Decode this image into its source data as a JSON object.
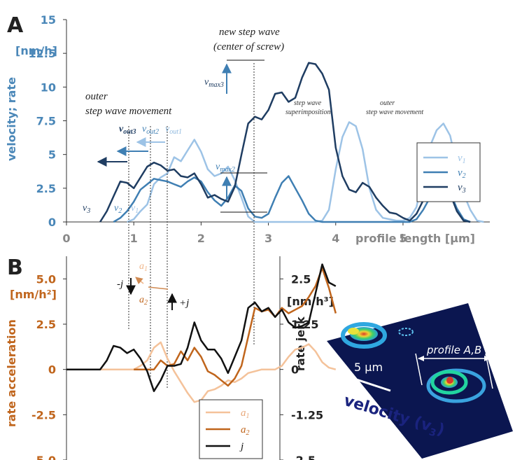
{
  "figure": {
    "panel_a_label": "A",
    "panel_b_label": "B"
  },
  "chart_data": [
    {
      "type": "line",
      "panel": "A",
      "ylabel": "velocity; rate",
      "yunit": "[nm/h]",
      "xlabel": "profile length [µm]",
      "xlim": [
        0,
        6.3
      ],
      "ylim": [
        0,
        15
      ],
      "xticks": [
        0,
        1,
        2,
        3,
        4,
        5
      ],
      "yticks": [
        0,
        2.5,
        5,
        7.5,
        10,
        12.5,
        15
      ],
      "ytick_labels": [
        "0",
        "2.5",
        "5",
        "7.5",
        "10",
        "12.5",
        "15"
      ],
      "xtick_labels": [
        "0",
        "1",
        "2",
        "3",
        "4",
        "5"
      ],
      "legend": {
        "placement": "right",
        "entries": [
          {
            "base": "v",
            "sub": "1"
          },
          {
            "base": "v",
            "sub": "2"
          },
          {
            "base": "v",
            "sub": "3"
          }
        ]
      },
      "colors": [
        "#9dc3e6",
        "#3f7fb3",
        "#1f3d62"
      ],
      "series": [
        {
          "name": "v1",
          "x": [
            0.9,
            1.0,
            1.1,
            1.2,
            1.3,
            1.4,
            1.5,
            1.6,
            1.7,
            1.8,
            1.9,
            2.0,
            2.1,
            2.2,
            2.3,
            2.4,
            2.5,
            2.6,
            2.7,
            2.8,
            2.9,
            3.0,
            3.1,
            3.2,
            3.3,
            3.4,
            3.5,
            3.6,
            3.7,
            3.8,
            3.9,
            4.0,
            4.1,
            4.2,
            4.3,
            4.4,
            4.5,
            4.6,
            4.7,
            4.8,
            4.9,
            5.0,
            5.1,
            5.2,
            5.3,
            5.4,
            5.5,
            5.6,
            5.7,
            5.8,
            5.9,
            6.0,
            6.1,
            6.2
          ],
          "y": [
            0,
            0.2,
            0.8,
            1.3,
            2.8,
            3.3,
            3.6,
            4.8,
            4.5,
            5.3,
            6.1,
            5.2,
            3.9,
            3.4,
            3.6,
            4.1,
            3.1,
            1.8,
            0.4,
            0,
            0,
            0,
            0,
            0,
            0,
            0,
            0,
            0,
            0,
            0.1,
            0.9,
            3.9,
            6.3,
            7.4,
            7.1,
            5.4,
            2.5,
            0.9,
            0.3,
            0.2,
            0.1,
            0.1,
            0.3,
            1.1,
            3.4,
            5.6,
            6.8,
            7.3,
            6.4,
            4.2,
            2.1,
            0.9,
            0.1,
            0
          ]
        },
        {
          "name": "v2",
          "x": [
            0.7,
            0.8,
            0.9,
            1.0,
            1.1,
            1.2,
            1.3,
            1.4,
            1.5,
            1.6,
            1.7,
            1.8,
            1.9,
            2.0,
            2.1,
            2.2,
            2.3,
            2.4,
            2.5,
            2.6,
            2.7,
            2.8,
            2.9,
            3.0,
            3.1,
            3.2,
            3.3,
            3.4,
            3.5,
            3.6,
            3.7,
            3.8,
            3.9,
            4.0,
            4.1,
            4.2,
            4.3,
            4.4,
            4.5,
            4.6,
            4.7,
            4.8,
            4.9,
            5.0,
            5.1,
            5.2,
            5.3,
            5.4,
            5.5,
            5.6,
            5.7,
            5.8,
            5.9,
            6.0
          ],
          "y": [
            0,
            0.3,
            0.8,
            1.5,
            2.4,
            2.8,
            3.2,
            3.1,
            3.0,
            2.8,
            2.6,
            3.0,
            3.3,
            3.0,
            2.2,
            1.6,
            1.2,
            1.8,
            2.7,
            2.3,
            1.0,
            0.4,
            0.3,
            0.6,
            1.8,
            2.9,
            3.4,
            2.5,
            1.6,
            0.6,
            0.1,
            0,
            0,
            0,
            0,
            0,
            0,
            0,
            0,
            0,
            0,
            0,
            0,
            0,
            0,
            0.2,
            0.9,
            1.8,
            2.3,
            2.6,
            2.2,
            1.0,
            0.2,
            0
          ]
        },
        {
          "name": "v3",
          "x": [
            0.5,
            0.6,
            0.7,
            0.8,
            0.9,
            1.0,
            1.1,
            1.2,
            1.3,
            1.4,
            1.5,
            1.6,
            1.7,
            1.8,
            1.9,
            2.0,
            2.1,
            2.2,
            2.3,
            2.4,
            2.5,
            2.6,
            2.7,
            2.8,
            2.9,
            3.0,
            3.1,
            3.2,
            3.3,
            3.4,
            3.5,
            3.6,
            3.7,
            3.8,
            3.9,
            4.0,
            4.1,
            4.2,
            4.3,
            4.4,
            4.5,
            4.6,
            4.7,
            4.8,
            4.9,
            5.0,
            5.1,
            5.2,
            5.3,
            5.4,
            5.5,
            5.6,
            5.7,
            5.8,
            5.9,
            6.0
          ],
          "y": [
            0,
            0.8,
            1.9,
            3.0,
            2.9,
            2.5,
            3.3,
            4.1,
            4.4,
            4.2,
            3.8,
            3.9,
            3.4,
            3.3,
            3.6,
            2.8,
            1.8,
            2.0,
            1.7,
            1.5,
            2.6,
            5.0,
            7.3,
            7.8,
            7.6,
            8.3,
            9.5,
            9.6,
            8.9,
            9.2,
            10.7,
            11.8,
            11.7,
            11.0,
            9.8,
            5.5,
            3.4,
            2.4,
            2.2,
            2.9,
            2.6,
            1.8,
            1.2,
            0.7,
            0.6,
            0.3,
            0.1,
            0.6,
            1.6,
            2.3,
            2.0,
            2.8,
            2.1,
            0.8,
            0.1,
            0
          ]
        }
      ],
      "annotations": {
        "outer_title_line1": "outer",
        "outer_title_line2": "step wave movement",
        "new_wave_line1": "new step wave",
        "new_wave_line2": "(center of screw)",
        "superposition_line1": "step wave",
        "superposition_line2": "superimposition",
        "outer_right_line1": "outer",
        "outer_right_line2": "step wave movement",
        "vout3": {
          "base": "v",
          "sub": "out3"
        },
        "vout2": {
          "base": "v",
          "sub": "out2"
        },
        "vout1": {
          "base": "v",
          "sub": "out1"
        },
        "vmax3": {
          "base": "v",
          "sub": "max3"
        },
        "vmax2": {
          "base": "v",
          "sub": "max2"
        },
        "v3_label": {
          "base": "v",
          "sub": "3"
        },
        "v2_label": {
          "base": "v",
          "sub": "2"
        },
        "v1_label": {
          "base": "v",
          "sub": "1"
        }
      }
    },
    {
      "type": "line",
      "panel": "B",
      "ylabel": "rate acceleration",
      "yunit": "[nm/h²]",
      "ylabel_right": "rate jerk",
      "yunit_right": "[nm/h³]",
      "xlim": [
        0,
        6.3
      ],
      "ylim": [
        -5,
        6.25
      ],
      "ylim_right": [
        -2.5,
        3.125
      ],
      "yticks": [
        5,
        2.5,
        0,
        -2.5,
        -5
      ],
      "ytick_labels": [
        "5.0",
        "2.5",
        "0",
        "-2.5",
        "-5.0"
      ],
      "yticks_right": [
        2.5,
        1.25,
        0,
        -1.25,
        -2.5
      ],
      "ytick_labels_right": [
        "2.5",
        "1.25",
        "0",
        "-1.25",
        "-2.5"
      ],
      "legend": {
        "placement": "bottom-center",
        "entries": [
          {
            "base": "a",
            "sub": "1"
          },
          {
            "base": "a",
            "sub": "2"
          },
          {
            "base": "j",
            "sub": ""
          }
        ]
      },
      "colors": [
        "#f4c29a",
        "#c0651c",
        "#111111"
      ],
      "series": [
        {
          "name": "a1",
          "x": [
            0.5,
            0.6,
            0.7,
            0.8,
            0.9,
            1.0,
            1.1,
            1.2,
            1.3,
            1.4,
            1.5,
            1.6,
            1.7,
            1.8,
            1.9,
            2.0,
            2.1,
            2.2,
            2.3,
            2.4,
            2.5,
            2.6,
            2.7,
            2.8,
            2.9,
            3.0,
            3.1,
            3.2,
            3.3,
            3.4,
            3.5,
            3.6,
            3.7,
            3.8,
            3.9,
            4.0
          ],
          "y": [
            0,
            0,
            0,
            0,
            0,
            0,
            0.2,
            0.5,
            1.2,
            1.5,
            0.6,
            -0.1,
            -0.7,
            -1.3,
            -1.8,
            -1.7,
            -1.2,
            -1.1,
            -0.9,
            -0.6,
            -0.7,
            -0.5,
            -0.2,
            -0.1,
            0,
            0,
            0,
            0.2,
            0.7,
            1.1,
            1.2,
            1.4,
            1.0,
            0.4,
            0.1,
            0
          ]
        },
        {
          "name": "a2",
          "x": [
            1.0,
            1.1,
            1.2,
            1.3,
            1.4,
            1.5,
            1.6,
            1.7,
            1.8,
            1.9,
            2.0,
            2.1,
            2.2,
            2.3,
            2.4,
            2.5,
            2.6,
            2.7,
            2.8,
            2.9,
            3.0,
            3.1,
            3.2,
            3.3,
            3.4,
            3.5,
            3.6,
            3.7,
            3.8,
            3.9,
            4.0
          ],
          "y": [
            0,
            0,
            0,
            0,
            0.5,
            0.2,
            0.3,
            1.0,
            0.5,
            1.2,
            0.7,
            -0.1,
            -0.3,
            -0.6,
            -0.9,
            -0.5,
            0.2,
            1.8,
            3.4,
            3.2,
            3.3,
            2.9,
            3.4,
            3.1,
            3.3,
            3.5,
            4.0,
            4.6,
            5.6,
            4.5,
            3.1
          ]
        },
        {
          "name": "j",
          "x": [
            0,
            0.1,
            0.2,
            0.3,
            0.4,
            0.5,
            0.6,
            0.7,
            0.8,
            0.9,
            1.0,
            1.1,
            1.2,
            1.3,
            1.4,
            1.5,
            1.6,
            1.7,
            1.8,
            1.9,
            2.0,
            2.1,
            2.2,
            2.3,
            2.4,
            2.5,
            2.6,
            2.7,
            2.8,
            2.9,
            3.0,
            3.1,
            3.2,
            3.3,
            3.4,
            3.5,
            3.6,
            3.7,
            3.8,
            3.9,
            4.0
          ],
          "y": [
            0,
            0,
            0,
            0,
            0,
            0,
            0.25,
            0.65,
            0.6,
            0.45,
            0.55,
            0.3,
            -0.05,
            -0.6,
            -0.3,
            0.1,
            0.1,
            0.15,
            0.6,
            1.3,
            0.8,
            0.55,
            0.55,
            0.3,
            -0.1,
            0.35,
            0.8,
            1.7,
            1.85,
            1.6,
            1.7,
            1.45,
            1.65,
            1.3,
            1.15,
            1.2,
            1.3,
            2.1,
            2.9,
            2.4,
            2.3
          ]
        }
      ],
      "annotations": {
        "neg_j": "-j",
        "pos_j": "+j",
        "a1_label": {
          "base": "a",
          "sub": "1"
        },
        "a2_label": {
          "base": "a",
          "sub": "2"
        }
      }
    }
  ],
  "inset": {
    "profile_label": "profile A,B",
    "scale_label": "5 µm",
    "caption_main": "velocity (v",
    "caption_sub": "3",
    "caption_end": ")",
    "surface_color": "#0b1650"
  }
}
